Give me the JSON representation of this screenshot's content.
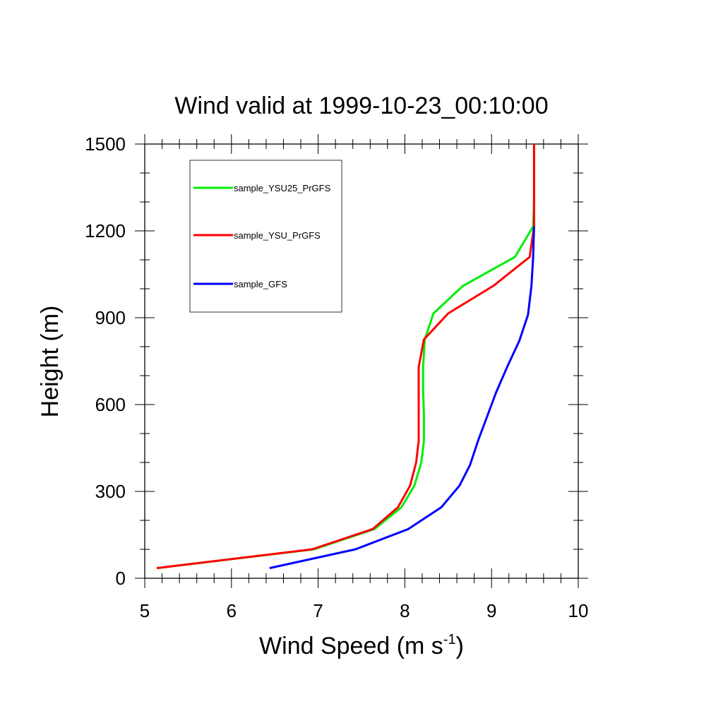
{
  "chart_data": {
    "type": "line",
    "title": "Wind valid at 1999-10-23_00:10:00",
    "xlabel_main": "Wind Speed (m s",
    "xlabel_sup": "-1",
    "xlabel_close": ")",
    "ylabel": "Height (m)",
    "xlim": [
      5,
      10
    ],
    "ylim": [
      0,
      1500
    ],
    "xticks": [
      5,
      6,
      7,
      8,
      9,
      10
    ],
    "yticks": [
      0,
      300,
      600,
      900,
      1200,
      1500
    ],
    "legend_position": "top-left",
    "series": [
      {
        "name": "sample_YSU25_PrGFS",
        "color": "#00ee00",
        "x": [
          5.14,
          6.95,
          7.65,
          7.96,
          8.11,
          8.19,
          8.22,
          8.22,
          8.21,
          8.21,
          8.23,
          8.33,
          8.67,
          9.27,
          9.48,
          9.49,
          9.49
        ],
        "y": [
          35,
          100,
          170,
          245,
          320,
          400,
          475,
          565,
          650,
          730,
          825,
          915,
          1010,
          1110,
          1215,
          1300,
          1500
        ]
      },
      {
        "name": "sample_YSU_PrGFS",
        "color": "#ff0000",
        "x": [
          5.14,
          6.93,
          7.63,
          7.92,
          8.06,
          8.13,
          8.16,
          8.16,
          8.16,
          8.16,
          8.22,
          8.5,
          9.02,
          9.44,
          9.49,
          9.49,
          9.49
        ],
        "y": [
          35,
          100,
          170,
          245,
          320,
          400,
          475,
          565,
          650,
          730,
          825,
          915,
          1010,
          1110,
          1215,
          1300,
          1500
        ]
      },
      {
        "name": "sample_GFS",
        "color": "#0000ff",
        "x": [
          6.44,
          7.43,
          8.04,
          8.42,
          8.63,
          8.75,
          8.85,
          8.95,
          9.05,
          9.18,
          9.32,
          9.42,
          9.46,
          9.48,
          9.49
        ],
        "y": [
          35,
          100,
          170,
          245,
          320,
          390,
          480,
          560,
          640,
          730,
          820,
          910,
          1010,
          1110,
          1215
        ]
      }
    ]
  }
}
